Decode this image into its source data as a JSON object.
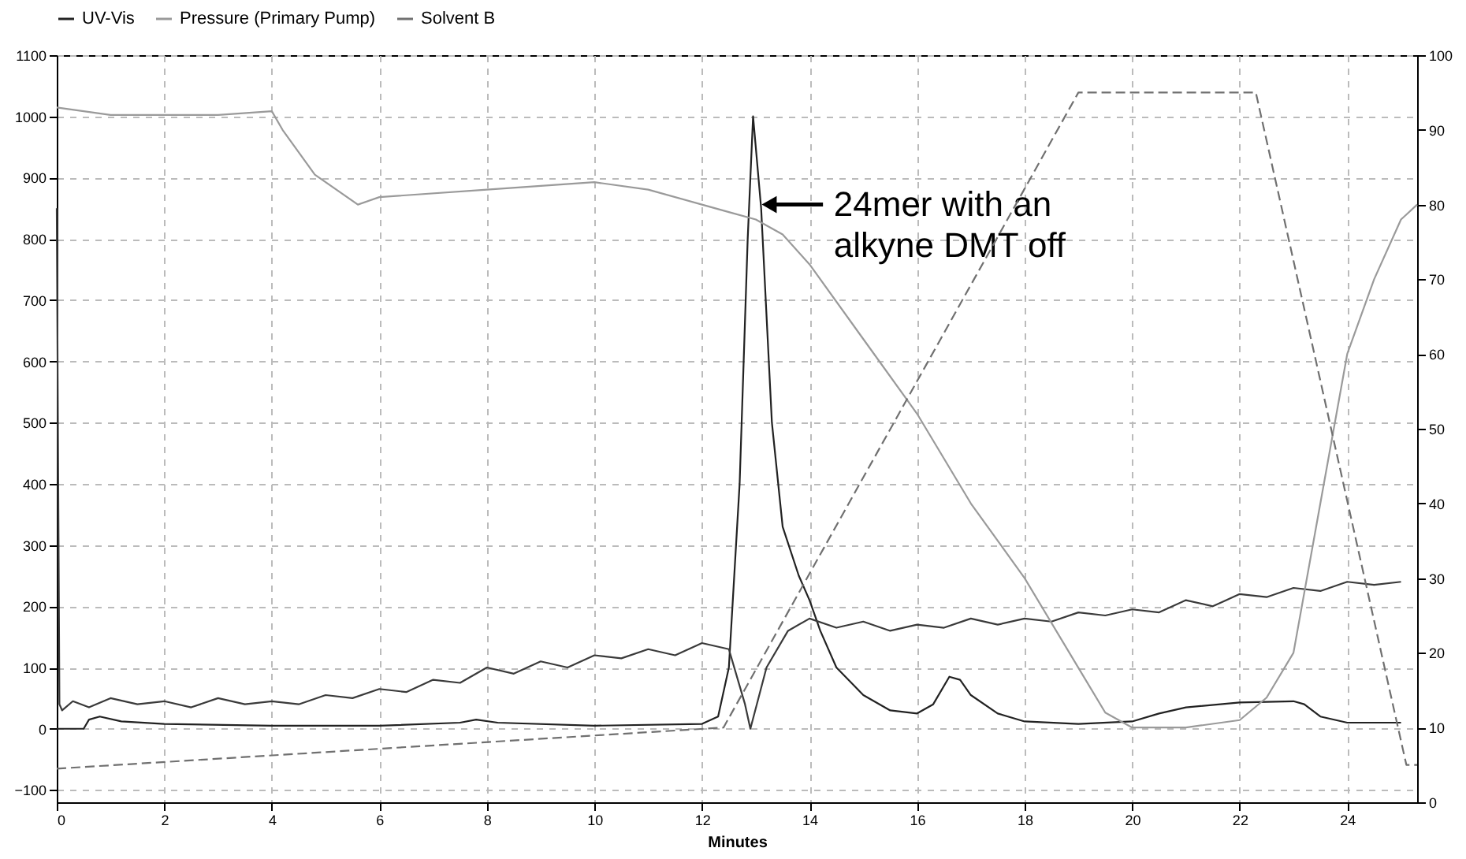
{
  "chart_data": {
    "type": "line",
    "xlabel": "Minutes",
    "xlim": [
      0,
      25.3
    ],
    "xticks": [
      0,
      2,
      4,
      6,
      8,
      10,
      12,
      14,
      16,
      18,
      20,
      22,
      24
    ],
    "ylim": [
      -120,
      1100
    ],
    "yticks": [
      -100,
      0,
      100,
      200,
      300,
      400,
      500,
      600,
      700,
      800,
      900,
      1000,
      1100
    ],
    "y2lim": [
      0,
      100
    ],
    "y2ticks": [
      0,
      10,
      20,
      30,
      40,
      50,
      60,
      70,
      80,
      90,
      100
    ],
    "grid": true,
    "legend": "top",
    "annotations": [
      {
        "text": "24mer with an alkyne DMT off",
        "x": 13.05,
        "y": 856
      }
    ],
    "series": [
      {
        "name": "UV-Vis",
        "color": "#222222",
        "line_style": "solid",
        "x": [
          0,
          0.5,
          0.6,
          0.8,
          1.2,
          2,
          4,
          6,
          7.5,
          7.8,
          8.2,
          10,
          12,
          12.3,
          12.5,
          12.7,
          12.85,
          12.95,
          13.1,
          13.3,
          13.5,
          13.8,
          14,
          14.2,
          14.5,
          15,
          15.5,
          16,
          16.3,
          16.6,
          16.8,
          17,
          17.5,
          18,
          19,
          20,
          20.5,
          21,
          22,
          23,
          23.2,
          23.5,
          24,
          25
        ],
        "values": [
          0,
          0,
          15,
          20,
          12,
          8,
          5,
          5,
          10,
          15,
          10,
          5,
          8,
          20,
          100,
          400,
          800,
          1000,
          850,
          500,
          330,
          250,
          210,
          160,
          100,
          55,
          30,
          25,
          40,
          85,
          80,
          55,
          25,
          12,
          8,
          12,
          25,
          35,
          43,
          45,
          40,
          20,
          10,
          10
        ]
      },
      {
        "color": "#3a3a3a",
        "line_style": "solid",
        "x": [
          0,
          0.05,
          0.1,
          0.3,
          0.6,
          1,
          1.5,
          2,
          2.5,
          3,
          3.5,
          4,
          4.5,
          5,
          5.5,
          6,
          6.5,
          7,
          7.5,
          8,
          8.5,
          9,
          9.5,
          10,
          10.5,
          11,
          11.5,
          12,
          12.5,
          12.8,
          12.9,
          13.2,
          13.6,
          14,
          14.5,
          15,
          15.5,
          16,
          16.5,
          17,
          17.5,
          18,
          18.5,
          19,
          19.5,
          20,
          20.5,
          21,
          21.5,
          22,
          22.5,
          23,
          23.5,
          24,
          24.5,
          25
        ],
        "values": [
          850,
          40,
          30,
          45,
          35,
          50,
          40,
          45,
          35,
          50,
          40,
          45,
          40,
          55,
          50,
          65,
          60,
          80,
          75,
          100,
          90,
          110,
          100,
          120,
          115,
          130,
          120,
          140,
          130,
          40,
          0,
          100,
          160,
          180,
          165,
          175,
          160,
          170,
          165,
          180,
          170,
          180,
          175,
          190,
          185,
          195,
          190,
          210,
          200,
          220,
          215,
          230,
          225,
          240,
          235,
          240
        ]
      },
      {
        "name": "Pressure (Primary Pump)",
        "color": "#9a9a9a",
        "line_style": "solid",
        "axis": "y2",
        "x": [
          0,
          1,
          3,
          4,
          4.2,
          4.8,
          5.6,
          6,
          8,
          10,
          11,
          12,
          12.5,
          13,
          13.5,
          14,
          15,
          16,
          17,
          18,
          19,
          19.5,
          20,
          21,
          22,
          22.5,
          23,
          23.5,
          24,
          24.5,
          25,
          25.3
        ],
        "values": [
          93,
          92,
          92,
          92.5,
          90,
          84,
          80,
          81,
          82,
          83,
          82,
          80,
          79,
          78,
          76,
          72,
          62,
          52,
          40,
          30,
          18,
          12,
          10,
          10,
          11,
          14,
          20,
          40,
          60,
          70,
          78,
          80
        ]
      },
      {
        "name": "Solvent B",
        "color": "#707070",
        "line_style": "dashed",
        "axis": "y2",
        "x": [
          0,
          12.4,
          19,
          22.3,
          25.1,
          25.3
        ],
        "values": [
          4.5,
          10,
          95,
          95,
          5,
          5
        ]
      }
    ]
  }
}
